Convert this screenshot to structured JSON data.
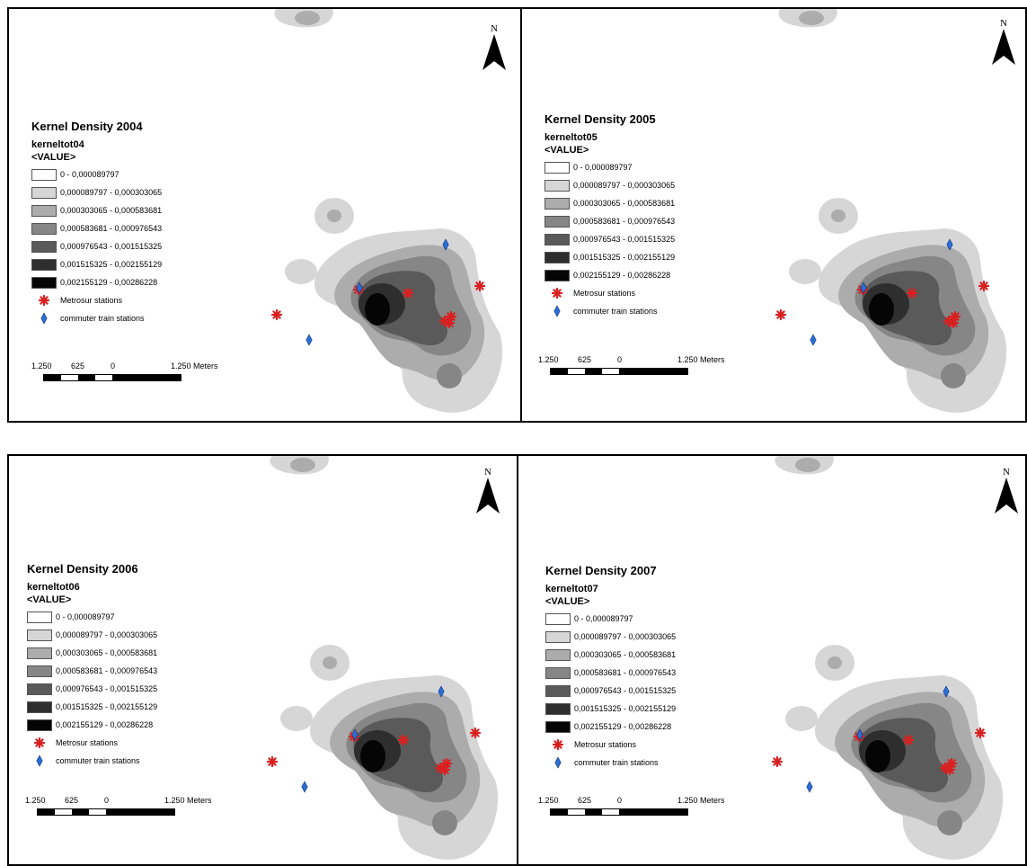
{
  "legend_common": {
    "value_header": "<VALUE>",
    "classes": [
      {
        "label": "0 - 0,000089797",
        "color": "#ffffff"
      },
      {
        "label": "0,000089797 - 0,000303065",
        "color": "#d6d6d6"
      },
      {
        "label": "0,000303065 - 0,000583681",
        "color": "#acacac"
      },
      {
        "label": "0,000583681 - 0,000976543",
        "color": "#868686"
      },
      {
        "label": "0,000976543 - 0,001515325",
        "color": "#5a5a5a"
      },
      {
        "label": "0,001515325 - 0,002155129",
        "color": "#2e2e2e"
      },
      {
        "label": "0,002155129 - 0,00286228",
        "color": "#050505"
      }
    ],
    "metrosur_label": "Metrosur stations",
    "commuter_label": "commuter train stations",
    "metrosur_color": "#d92020",
    "commuter_color": "#2a6fd6"
  },
  "scale_common": {
    "labels": [
      "1.250",
      "625",
      "0",
      "1.250 Meters"
    ]
  },
  "north_label": "N",
  "panels": [
    {
      "title": "Kernel Density 2004",
      "layer": "kerneltot04"
    },
    {
      "title": "Kernel Density 2005",
      "layer": "kerneltot05"
    },
    {
      "title": "Kernel Density 2006",
      "layer": "kerneltot06"
    },
    {
      "title": "Kernel Density 2007",
      "layer": "kerneltot07"
    }
  ]
}
